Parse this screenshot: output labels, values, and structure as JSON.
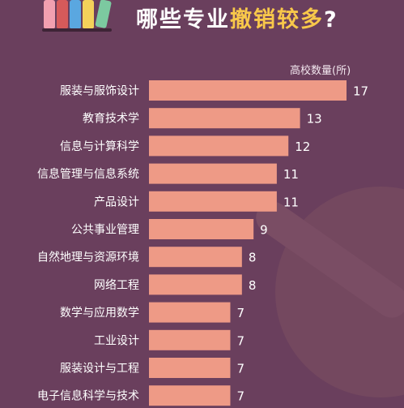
{
  "header": {
    "title_pre": "哪些专业",
    "title_highlight": "撤销较多",
    "title_post": "?"
  },
  "colors": {
    "background": "#6a3f5d",
    "bar": "#ee9a86",
    "highlight": "#f8c84a",
    "text": "#ffffff"
  },
  "chart_data": {
    "type": "bar",
    "orientation": "horizontal",
    "ylabel": "高校数量(所)",
    "categories": [
      "服装与服饰设计",
      "教育技术学",
      "信息与计算科学",
      "信息管理与信息系统",
      "产品设计",
      "公共事业管理",
      "自然地理与资源环境",
      "网络工程",
      "数学与应用数学",
      "工业设计",
      "服装设计与工程",
      "电子信息科学与技术"
    ],
    "values": [
      17,
      13,
      12,
      11,
      11,
      9,
      8,
      8,
      7,
      7,
      7,
      7
    ],
    "value_labels": [
      "17",
      "13",
      "12",
      "11",
      "11",
      "9",
      "8",
      "8",
      "7",
      "7",
      "7",
      "7"
    ],
    "xlim": [
      0,
      17
    ],
    "grid": false,
    "legend": "none"
  }
}
